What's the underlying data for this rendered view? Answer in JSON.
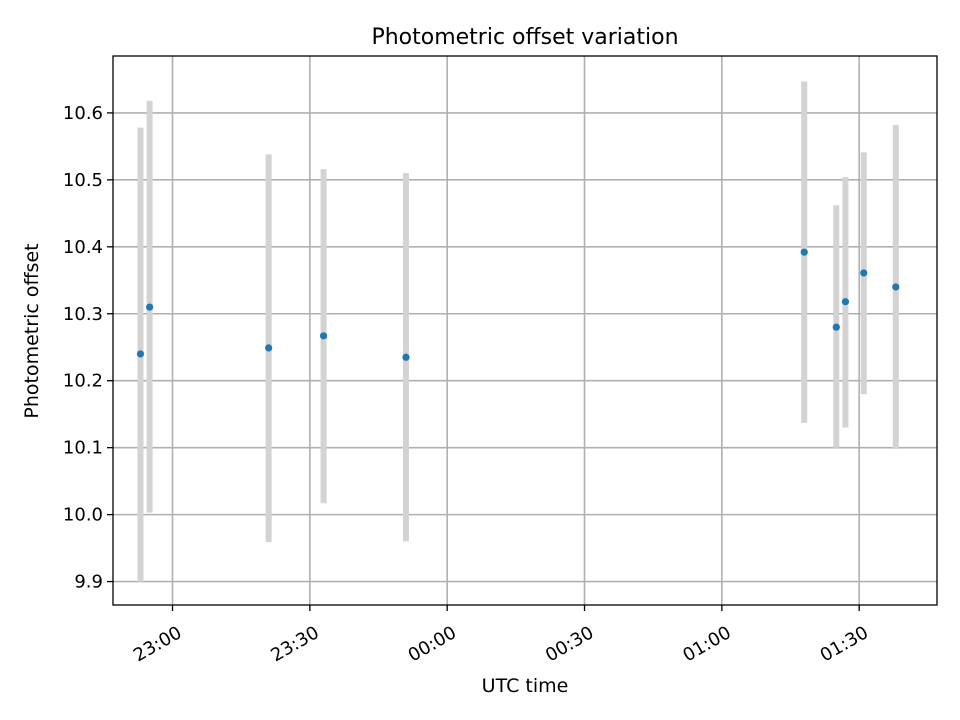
{
  "chart_data": {
    "type": "scatter",
    "title": "Photometric offset variation",
    "xlabel": "UTC time",
    "ylabel": "Photometric offset",
    "x_axis_type": "time",
    "xlim": [
      "22:47",
      "01:47"
    ],
    "ylim": [
      9.865,
      10.685
    ],
    "x_ticks": [
      "23:00",
      "23:30",
      "00:00",
      "00:30",
      "01:00",
      "01:30"
    ],
    "y_ticks": [
      9.9,
      10.0,
      10.1,
      10.2,
      10.3,
      10.4,
      10.5,
      10.6
    ],
    "y_tick_labels": [
      "9.9",
      "10.0",
      "10.1",
      "10.2",
      "10.3",
      "10.4",
      "10.5",
      "10.6"
    ],
    "grid": true,
    "marker_color": "#1f77b4",
    "errorbar_color": "#d3d3d3",
    "points": [
      {
        "x": "22:53",
        "y": 10.24,
        "yerr_low": 9.9,
        "yerr_high": 10.578
      },
      {
        "x": "22:55",
        "y": 10.31,
        "yerr_low": 10.003,
        "yerr_high": 10.618
      },
      {
        "x": "23:21",
        "y": 10.249,
        "yerr_low": 9.959,
        "yerr_high": 10.538
      },
      {
        "x": "23:33",
        "y": 10.267,
        "yerr_low": 10.017,
        "yerr_high": 10.516
      },
      {
        "x": "23:51",
        "y": 10.235,
        "yerr_low": 9.96,
        "yerr_high": 10.51
      },
      {
        "x": "01:18",
        "y": 10.392,
        "yerr_low": 10.137,
        "yerr_high": 10.647
      },
      {
        "x": "01:25",
        "y": 10.28,
        "yerr_low": 10.1,
        "yerr_high": 10.462
      },
      {
        "x": "01:27",
        "y": 10.318,
        "yerr_low": 10.13,
        "yerr_high": 10.504
      },
      {
        "x": "01:31",
        "y": 10.361,
        "yerr_low": 10.18,
        "yerr_high": 10.541
      },
      {
        "x": "01:38",
        "y": 10.34,
        "yerr_low": 10.098,
        "yerr_high": 10.582
      }
    ]
  }
}
